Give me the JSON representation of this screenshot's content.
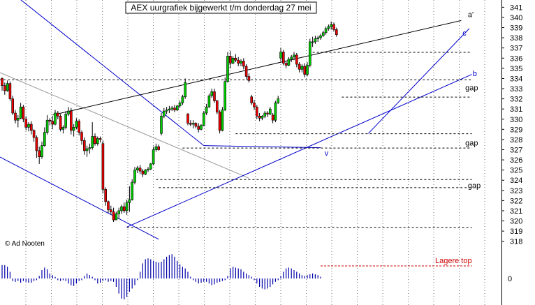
{
  "chart_data": {
    "type": "candlestick",
    "title": "AEX uurgrafiek bijgewerkt t/m donderdag 27 mei",
    "copyright": "© Ad Nooten",
    "y_axis": {
      "position": "right",
      "ylim": [
        317.5,
        341.3
      ],
      "ticks": [
        318,
        319,
        320,
        321,
        322,
        323,
        324,
        325,
        326,
        327,
        328,
        329,
        330,
        331,
        332,
        333,
        334,
        335,
        336,
        337,
        338,
        339,
        340,
        341
      ]
    },
    "lower_panel": {
      "type": "histogram",
      "zero_label": "0",
      "values": [
        1.6,
        1.6,
        1.4,
        0.8,
        -0.3,
        -0.4,
        -0.3,
        -0.5,
        -0.3,
        -0.4,
        -0.5,
        -0.5,
        -0.3,
        -0.2,
        0.3,
        1.0,
        1.3,
        1.1,
        0.6,
        0.4,
        0.2,
        -0.2,
        -0.3,
        -0.2,
        -0.3,
        -0.6,
        -0.8,
        -0.9,
        -0.6,
        -0.3,
        -0.2,
        0.3,
        0.6,
        0.4,
        0.2,
        -0.2,
        -0.6,
        -0.5,
        -0.3,
        -0.2,
        -0.4,
        -0.3,
        -0.4,
        -1.0,
        -1.8,
        -2.4,
        -2.5,
        -2.2,
        -1.6,
        -1.2,
        -0.8,
        -0.2,
        0.8,
        1.8,
        2.3,
        2.4,
        2.3,
        2.1,
        2.0,
        1.9,
        2.0,
        2.3,
        2.6,
        2.8,
        2.9,
        2.6,
        2.1,
        1.7,
        1.4,
        1.2,
        0.8,
        0.2,
        -0.2,
        -0.4,
        -0.6,
        -0.5,
        -0.4,
        -0.4,
        -0.6,
        -0.8,
        -0.7,
        -0.5,
        -0.4,
        -0.3,
        -0.2,
        0.3,
        1.2,
        1.4,
        1.3,
        1.2,
        1.1,
        0.8,
        0.6,
        0.4,
        0.2,
        -0.2,
        -0.6,
        -1.0,
        -1.2,
        -1.3,
        -1.2,
        -1.0,
        -0.7,
        -0.4,
        -0.2,
        0.3,
        0.8,
        1.2,
        1.3,
        1.2,
        1.0,
        0.8,
        0.6,
        0.4,
        0.3,
        0.4,
        0.5,
        0.6,
        0.5,
        0.4,
        0.2
      ]
    },
    "candles": [
      [
        334,
        334.1,
        332.8,
        333.3
      ],
      [
        333.3,
        333.6,
        332.4,
        332.8
      ],
      [
        332.8,
        333.8,
        332.7,
        333.5
      ],
      [
        333.5,
        333.7,
        331.8,
        332
      ],
      [
        332,
        332.3,
        330.4,
        330.6
      ],
      [
        330.6,
        330.9,
        329.6,
        329.9
      ],
      [
        329.9,
        330.4,
        329.2,
        330.1
      ],
      [
        330.1,
        331.6,
        330,
        331.2
      ],
      [
        331.2,
        331.4,
        329.7,
        330
      ],
      [
        330,
        330.3,
        328.9,
        329.2
      ],
      [
        329.2,
        329.7,
        328.8,
        329.5
      ],
      [
        329.5,
        329.8,
        328.5,
        328.9
      ],
      [
        328.9,
        329,
        327.8,
        328.2
      ],
      [
        328.2,
        328.4,
        326.2,
        326.9
      ],
      [
        326.9,
        327.3,
        325.6,
        326.3
      ],
      [
        326.3,
        327.8,
        326.1,
        327.4
      ],
      [
        327.4,
        329.2,
        327.3,
        328.7
      ],
      [
        328.7,
        330.4,
        328.5,
        329.9
      ],
      [
        329.9,
        330.1,
        329.4,
        329.8
      ],
      [
        329.8,
        330.3,
        329,
        329.5
      ],
      [
        329.5,
        330.9,
        329.4,
        330.6
      ],
      [
        330.6,
        330.8,
        330,
        330.3
      ],
      [
        330.3,
        330.5,
        328.8,
        329
      ],
      [
        329,
        329.4,
        328.6,
        329.2
      ],
      [
        329.2,
        330.8,
        329,
        330.5
      ],
      [
        330.5,
        331.2,
        330.3,
        330.8
      ],
      [
        330.8,
        331.1,
        328.5,
        328.9
      ],
      [
        328.9,
        329.5,
        328.3,
        329.2
      ],
      [
        329.2,
        330.1,
        329,
        329.8
      ],
      [
        329.8,
        330,
        328.4,
        328.7
      ],
      [
        328.7,
        328.9,
        327.5,
        327.9
      ],
      [
        327.9,
        328.2,
        326.5,
        326.9
      ],
      [
        326.9,
        327.4,
        326.3,
        327.1
      ],
      [
        327.1,
        327.6,
        326.6,
        327.2
      ],
      [
        327.2,
        329.7,
        327,
        328.3
      ],
      [
        328.3,
        328.6,
        327.4,
        327.6
      ],
      [
        327.6,
        328.3,
        327.4,
        328.1
      ],
      [
        328.1,
        328.3,
        327.7,
        328
      ],
      [
        327.6,
        327.9,
        322.7,
        323.1
      ],
      [
        323.1,
        323.3,
        321.5,
        321.9
      ],
      [
        321.9,
        322,
        320.8,
        321.1
      ],
      [
        321.1,
        321.5,
        320.6,
        320.9
      ],
      [
        320.9,
        321.3,
        319.9,
        320.1
      ],
      [
        320.1,
        320.9,
        320.1,
        320.7
      ],
      [
        320.7,
        321.3,
        320.2,
        321
      ],
      [
        321,
        321.6,
        320.7,
        321.4
      ],
      [
        321.4,
        321.8,
        320.8,
        321
      ],
      [
        321,
        322.1,
        320.6,
        321.8
      ],
      [
        321.8,
        323.4,
        320.9,
        322.1
      ],
      [
        322.1,
        324.1,
        322,
        323.8
      ],
      [
        323.8,
        325.3,
        323.6,
        325
      ],
      [
        325,
        325.4,
        324.7,
        325.2
      ],
      [
        325.2,
        325.5,
        324.6,
        324.9
      ],
      [
        324.9,
        325.1,
        324.3,
        324.6
      ],
      [
        324.6,
        325.1,
        324.5,
        325
      ],
      [
        325,
        325.3,
        324.8,
        325.1
      ],
      [
        325.1,
        325.7,
        325,
        325.6
      ],
      [
        325.6,
        327.3,
        325.5,
        327
      ],
      [
        327,
        327.6,
        326.8,
        327.3
      ],
      [
        327.3,
        327.5,
        326.9,
        327
      ],
      [
        328.6,
        330.6,
        328.4,
        330.3
      ],
      [
        330.3,
        331.1,
        330.1,
        330.8
      ],
      [
        330.8,
        331.2,
        330.5,
        330.9
      ],
      [
        330.9,
        331.3,
        330.6,
        331
      ],
      [
        331,
        331.3,
        330.8,
        331.1
      ],
      [
        331.1,
        331.4,
        330.7,
        330.9
      ],
      [
        330.9,
        331.4,
        330.8,
        331.3
      ],
      [
        331.3,
        331.8,
        331.1,
        331.6
      ],
      [
        331.6,
        332.4,
        331.4,
        332.2
      ],
      [
        332.2,
        334,
        332,
        333.6
      ],
      [
        330.5,
        330.6,
        329.4,
        329.6
      ],
      [
        329.6,
        329.9,
        329.3,
        329.5
      ],
      [
        329.5,
        329.9,
        329.1,
        329.6
      ],
      [
        329.6,
        329.7,
        329.1,
        329.3
      ],
      [
        329.3,
        329.6,
        328.7,
        329
      ],
      [
        329,
        329.5,
        328.9,
        329.4
      ],
      [
        329.4,
        330.8,
        329.3,
        330.6
      ],
      [
        330.6,
        331.5,
        330.4,
        331.2
      ],
      [
        331.2,
        332.5,
        331.1,
        332.3
      ],
      [
        332.3,
        333,
        332.1,
        332.7
      ],
      [
        332.7,
        333,
        331.6,
        331.8
      ],
      [
        331.8,
        331.9,
        330.5,
        330.7
      ],
      [
        330.7,
        330.9,
        328.6,
        328.9
      ],
      [
        328.9,
        331.2,
        328.8,
        330.9
      ],
      [
        330.9,
        334.1,
        330.8,
        333.7
      ],
      [
        333.7,
        336.6,
        333.6,
        336.2
      ],
      [
        336.2,
        336.7,
        335,
        335.5
      ],
      [
        335.5,
        336.2,
        335.4,
        336
      ],
      [
        336,
        336.4,
        335.6,
        335.8
      ],
      [
        335.8,
        336.1,
        335.2,
        335.5
      ],
      [
        335.5,
        335.9,
        335.2,
        335.7
      ],
      [
        335.7,
        336,
        334.9,
        335.2
      ],
      [
        335.2,
        335.4,
        333.9,
        334.2
      ],
      [
        334.2,
        334.5,
        333.6,
        333.8
      ],
      [
        332.2,
        332.4,
        331.4,
        331.6
      ],
      [
        331.6,
        331.9,
        330.9,
        331.2
      ],
      [
        331.2,
        331.4,
        330,
        330.3
      ],
      [
        330.3,
        330.6,
        329.8,
        330.1
      ],
      [
        330.1,
        330.4,
        329.9,
        330.3
      ],
      [
        330.3,
        330.8,
        330.1,
        330.6
      ],
      [
        330.6,
        330.8,
        330.2,
        330.5
      ],
      [
        330.5,
        331.2,
        330.4,
        331
      ],
      [
        330.4,
        330.6,
        329.6,
        329.9
      ],
      [
        329.9,
        331.8,
        329.7,
        331.6
      ],
      [
        331.6,
        332.3,
        331.5,
        332
      ],
      [
        336,
        337,
        335.7,
        336.6
      ],
      [
        336.6,
        336.8,
        335.3,
        335.5
      ],
      [
        335.5,
        335.7,
        335,
        335.3
      ],
      [
        335.3,
        336.1,
        335.2,
        335.9
      ],
      [
        335.9,
        336.3,
        335.6,
        336.1
      ],
      [
        336.1,
        336.6,
        335.8,
        336.3
      ],
      [
        336.3,
        336.5,
        335.1,
        335.4
      ],
      [
        335.4,
        335.6,
        334.6,
        334.9
      ],
      [
        334.9,
        335.4,
        334.6,
        335.2
      ],
      [
        335.2,
        335.5,
        334.1,
        334.4
      ],
      [
        334.4,
        335.6,
        334.2,
        335.3
      ],
      [
        335.3,
        337.9,
        335.1,
        337.6
      ],
      [
        337.6,
        338.1,
        337.1,
        337.6
      ],
      [
        337.6,
        338.2,
        337.4,
        337.9
      ],
      [
        337.9,
        338.2,
        337.6,
        338
      ],
      [
        338,
        338.4,
        337.8,
        338.2
      ],
      [
        338.2,
        338.7,
        338.1,
        338.5
      ],
      [
        338.5,
        339.1,
        338.3,
        338.9
      ],
      [
        338.9,
        339.3,
        338.7,
        339.1
      ],
      [
        339.1,
        339.6,
        338.8,
        339.3
      ],
      [
        339.3,
        339.5,
        338.6,
        338.8
      ],
      [
        338.8,
        339,
        338.1,
        338.3
      ]
    ],
    "trendlines": [
      {
        "name": "channel-upper",
        "color": "#0000cc",
        "points": [
          [
            -1,
            343.4
          ],
          [
            76,
            327.4
          ]
        ]
      },
      {
        "name": "channel-upper-ext",
        "color": "#0000cc",
        "points": [
          [
            76,
            327.4
          ],
          [
            120,
            327.2
          ]
        ]
      },
      {
        "name": "channel-lower",
        "color": "#0000cc",
        "points": [
          [
            -1,
            326.3
          ],
          [
            59,
            318.2
          ]
        ]
      },
      {
        "name": "grey-parallel",
        "color": "#999999",
        "points": [
          [
            -1,
            334.6
          ],
          [
            93,
            324.2
          ]
        ]
      },
      {
        "name": "black-upper",
        "color": "#000000",
        "points": [
          [
            19,
            330.4
          ],
          [
            173,
            339.7
          ]
        ]
      },
      {
        "name": "support-b",
        "color": "#0000cc",
        "points": [
          [
            47,
            319.4
          ],
          [
            177,
            334.4
          ]
        ]
      },
      {
        "name": "steep-c",
        "color": "#0000cc",
        "points": [
          [
            138,
            328.6
          ],
          [
            176,
            338.9
          ]
        ]
      }
    ],
    "levels": [
      {
        "y": 336.6,
        "x_from": 117,
        "x_to": 177
      },
      {
        "y": 333.9,
        "x_from": -1,
        "x_to": 177
      },
      {
        "y": 332.2,
        "x_from": 128,
        "x_to": 177
      },
      {
        "y": 328.6,
        "x_from": 88,
        "x_to": 177
      },
      {
        "y": 327.2,
        "x_from": 68,
        "x_to": 177
      },
      {
        "y": 324.1,
        "x_from": 58,
        "x_to": 177
      },
      {
        "y": 323.3,
        "x_from": 59,
        "x_to": 177
      },
      {
        "y": 319.4,
        "x_from": 47,
        "x_to": 177
      }
    ],
    "annotations": [
      {
        "text": "a'",
        "x": 175.5,
        "y": 340.3
      },
      {
        "text": "c",
        "x": 173.5,
        "y": 338.5
      },
      {
        "text": "b",
        "x": 177.3,
        "y": 334.5
      },
      {
        "text": "gap",
        "x": 174.5,
        "y": 333.1
      },
      {
        "text": "v",
        "x": 121.5,
        "y": 326.7
      },
      {
        "text": "gap",
        "x": 174.5,
        "y": 327.7
      },
      {
        "text": "gap",
        "x": 175.5,
        "y": 323.5
      }
    ],
    "lower_label": "Lagere top"
  }
}
